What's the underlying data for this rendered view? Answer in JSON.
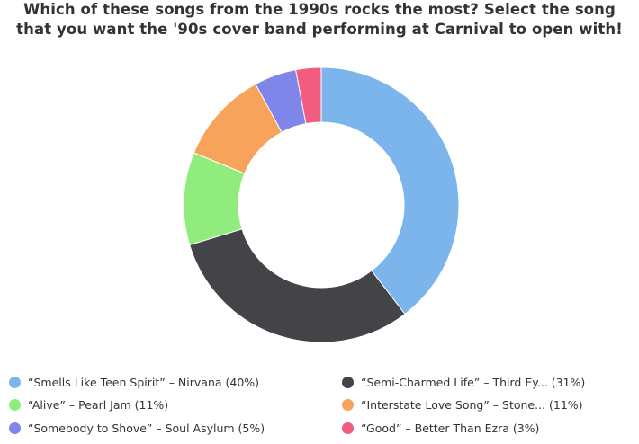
{
  "title_lines": [
    "Which of these songs from the 1990s rocks the most? Select the song",
    "that you want the '90s cover band performing at Carnival to open with!"
  ],
  "chart_data": {
    "type": "pie",
    "variant": "donut",
    "title": "Which of these songs from the 1990s rocks the most? Select the song that you want the '90s cover band performing at Carnival to open with!",
    "legend_position": "bottom",
    "slices": [
      {
        "label": "“Smells Like Teen Spirit” – Nirvana (40%)",
        "value": 40,
        "color": "#7cb5ec"
      },
      {
        "label": "“Semi-Charmed Life” – Third Ey... (31%)",
        "value": 31,
        "color": "#434348"
      },
      {
        "label": "“Alive” – Pearl Jam (11%)",
        "value": 11,
        "color": "#90ed7d"
      },
      {
        "label": "“Interstate Love Song” – Stone... (11%)",
        "value": 11,
        "color": "#f7a35c"
      },
      {
        "label": "“Somebody to Shove” – Soul Asylum (5%)",
        "value": 5,
        "color": "#8085e9"
      },
      {
        "label": "“Good” – Better Than Ezra (3%)",
        "value": 3,
        "color": "#f15c80"
      }
    ]
  }
}
